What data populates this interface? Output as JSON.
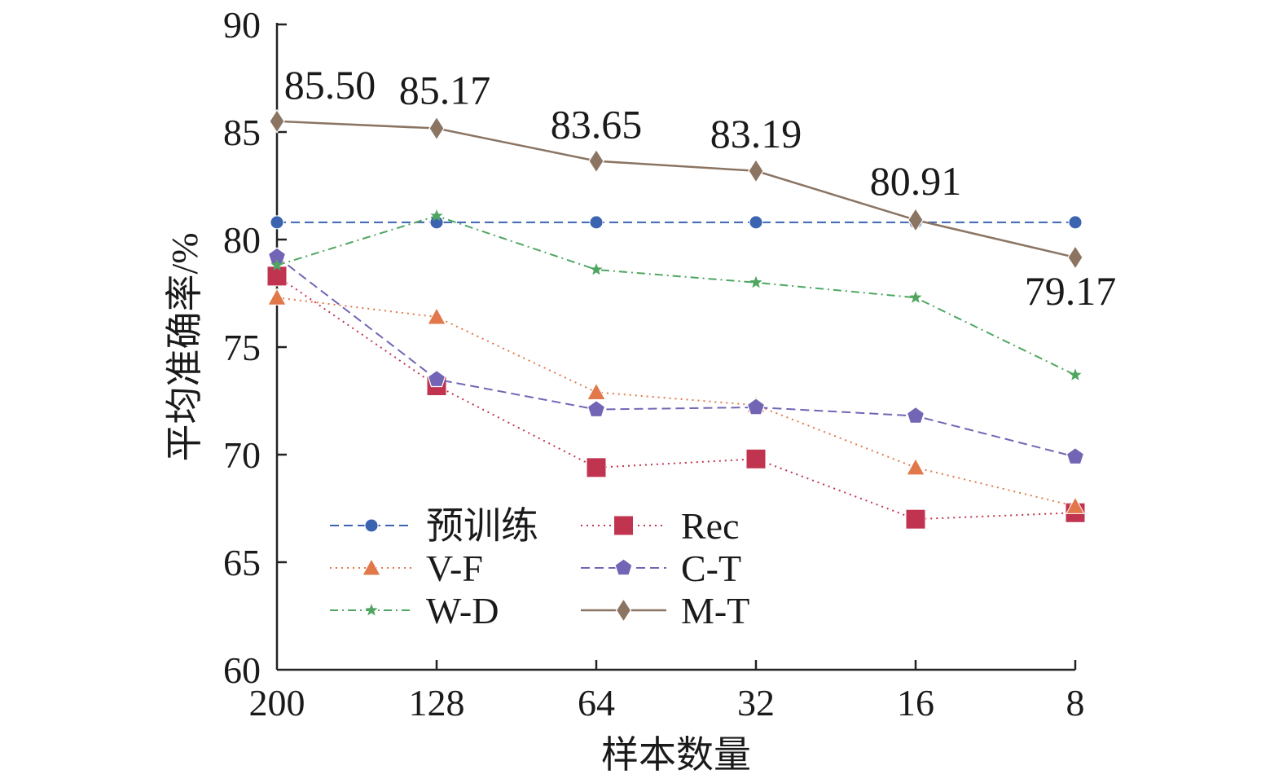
{
  "chart_data": {
    "type": "line",
    "title": "",
    "xlabel": "样本数量",
    "ylabel": "平均准确率/%",
    "categories": [
      "200",
      "128",
      "64",
      "32",
      "16",
      "8"
    ],
    "ylim": [
      60,
      90
    ],
    "yticks": [
      "60",
      "65",
      "70",
      "75",
      "80",
      "85",
      "90"
    ],
    "grid": false,
    "legend_position": "lower-left",
    "series": [
      {
        "name": "预训练",
        "values": [
          80.8,
          80.8,
          80.8,
          80.8,
          80.8,
          80.8
        ],
        "color": "#3b63b0",
        "marker": "circle",
        "dash": "dashed"
      },
      {
        "name": "Rec",
        "values": [
          78.3,
          73.2,
          69.4,
          69.8,
          67.0,
          67.3
        ],
        "color": "#c0344f",
        "marker": "square",
        "dash": "dotted"
      },
      {
        "name": "V-F",
        "values": [
          77.3,
          76.4,
          72.9,
          72.3,
          69.4,
          67.6
        ],
        "color": "#e2784a",
        "marker": "triangle",
        "dash": "dotted"
      },
      {
        "name": "C-T",
        "values": [
          79.2,
          73.5,
          72.1,
          72.2,
          71.8,
          69.9
        ],
        "color": "#7265b5",
        "marker": "pentagon",
        "dash": "dashed"
      },
      {
        "name": "W-D",
        "values": [
          78.8,
          81.1,
          78.6,
          78.0,
          77.3,
          73.7
        ],
        "color": "#4ea660",
        "marker": "star",
        "dash": "dashdot"
      },
      {
        "name": "M-T",
        "values": [
          85.5,
          85.17,
          83.65,
          83.19,
          80.91,
          79.17
        ],
        "color": "#8b7462",
        "marker": "diamond",
        "dash": "solid"
      }
    ],
    "annotations": [
      "85.50",
      "85.17",
      "83.65",
      "83.19",
      "80.91",
      "79.17"
    ]
  }
}
